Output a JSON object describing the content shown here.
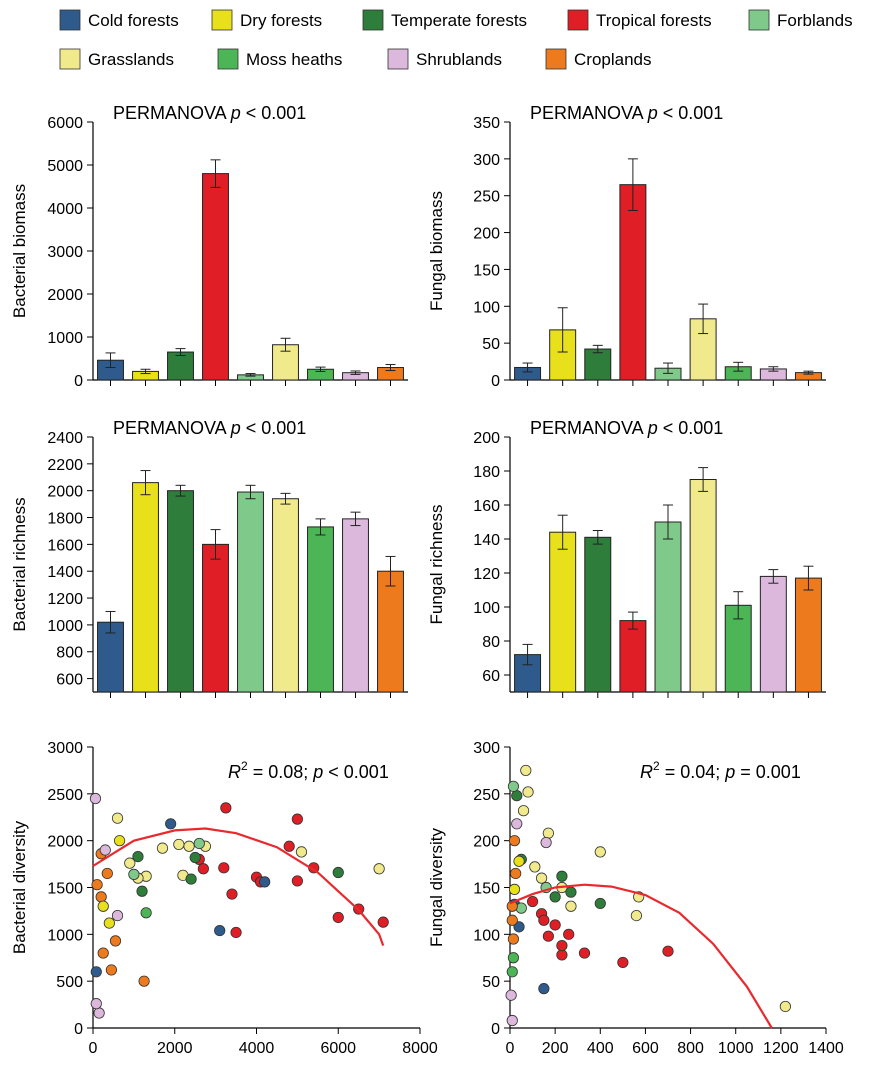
{
  "colors": {
    "Cold forests": "#2e5b8b",
    "Dry forests": "#e8e01a",
    "Temperate forests": "#2f7d3a",
    "Tropical forests": "#e01e25",
    "Forblands": "#7fc98a",
    "Grasslands": "#f0ea8c",
    "Moss heaths": "#4cb556",
    "Shrublands": "#dcb8dc",
    "Croplands": "#ee7a1e",
    "fit_line": "#e8292e"
  },
  "legend": {
    "items": [
      "Cold forests",
      "Dry forests",
      "Temperate forests",
      "Tropical forests",
      "Forblands",
      "Grasslands",
      "Moss heaths",
      "Shrublands",
      "Croplands"
    ]
  },
  "chart_data": [
    {
      "id": "bacterial-biomass",
      "type": "bar",
      "annotation": "PERMANOVA p < 0.001",
      "ylabel": "Bacterial biomass",
      "ylim": [
        0,
        6000
      ],
      "yticks": [
        0,
        1000,
        2000,
        3000,
        4000,
        5000,
        6000
      ],
      "categories": [
        "Cold forests",
        "Dry forests",
        "Temperate forests",
        "Tropical forests",
        "Forblands",
        "Grasslands",
        "Moss heaths",
        "Shrublands",
        "Croplands"
      ],
      "values": [
        460,
        200,
        650,
        4800,
        120,
        820,
        250,
        170,
        290
      ],
      "errors": [
        170,
        50,
        80,
        320,
        30,
        150,
        50,
        40,
        70
      ]
    },
    {
      "id": "fungal-biomass",
      "type": "bar",
      "annotation": "PERMANOVA p < 0.001",
      "ylabel": "Fungal biomass",
      "ylim": [
        0,
        350
      ],
      "yticks": [
        0,
        50,
        100,
        150,
        200,
        250,
        300,
        350
      ],
      "categories": [
        "Cold forests",
        "Dry forests",
        "Temperate forests",
        "Tropical forests",
        "Forblands",
        "Grasslands",
        "Moss heaths",
        "Shrublands",
        "Croplands"
      ],
      "values": [
        17,
        68,
        42,
        265,
        16,
        83,
        18,
        15,
        10
      ],
      "errors": [
        6,
        30,
        5,
        35,
        7,
        20,
        6,
        3,
        2
      ]
    },
    {
      "id": "bacterial-richness",
      "type": "bar",
      "annotation": "PERMANOVA p < 0.001",
      "ylabel": "Bacterial richness",
      "ylim": [
        500,
        2400
      ],
      "yticks": [
        600,
        800,
        1000,
        1200,
        1400,
        1600,
        1800,
        2000,
        2200,
        2400
      ],
      "categories": [
        "Cold forests",
        "Dry forests",
        "Temperate forests",
        "Tropical forests",
        "Forblands",
        "Grasslands",
        "Moss heaths",
        "Shrublands",
        "Croplands"
      ],
      "values": [
        1020,
        2060,
        2000,
        1600,
        1990,
        1940,
        1730,
        1790,
        1400
      ],
      "errors": [
        80,
        90,
        40,
        110,
        50,
        40,
        60,
        50,
        110
      ]
    },
    {
      "id": "fungal-richness",
      "type": "bar",
      "annotation": "PERMANOVA p < 0.001",
      "ylabel": "Fungal richness",
      "ylim": [
        50,
        200
      ],
      "yticks": [
        60,
        80,
        100,
        120,
        140,
        160,
        180,
        200
      ],
      "categories": [
        "Cold forests",
        "Dry forests",
        "Temperate forests",
        "Tropical forests",
        "Forblands",
        "Grasslands",
        "Moss heaths",
        "Shrublands",
        "Croplands"
      ],
      "values": [
        72,
        144,
        141,
        92,
        150,
        175,
        101,
        118,
        117
      ],
      "errors": [
        6,
        10,
        4,
        5,
        10,
        7,
        8,
        4,
        7
      ]
    },
    {
      "id": "bacterial-diversity-scatter",
      "type": "scatter",
      "annotation": "R2 = 0.08; p < 0.001",
      "xlabel": "Bacterial biomass",
      "ylabel": "Bacterial diversity",
      "xlim": [
        0,
        8000
      ],
      "ylim": [
        0,
        3000
      ],
      "xticks": [
        0,
        2000,
        4000,
        6000,
        8000
      ],
      "yticks": [
        0,
        500,
        1000,
        1500,
        2000,
        2500,
        3000
      ],
      "fit_line": [
        [
          0,
          1730
        ],
        [
          1000,
          2000
        ],
        [
          2000,
          2110
        ],
        [
          2750,
          2130
        ],
        [
          3500,
          2080
        ],
        [
          4500,
          1930
        ],
        [
          5500,
          1660
        ],
        [
          6500,
          1260
        ],
        [
          7000,
          1000
        ],
        [
          7100,
          880
        ]
      ],
      "points": [
        [
          3250,
          2350,
          "Tropical forests"
        ],
        [
          5000,
          2230,
          "Tropical forests"
        ],
        [
          4800,
          1940,
          "Tropical forests"
        ],
        [
          2600,
          1800,
          "Tropical forests"
        ],
        [
          2700,
          1700,
          "Tropical forests"
        ],
        [
          3200,
          1710,
          "Tropical forests"
        ],
        [
          4000,
          1610,
          "Tropical forests"
        ],
        [
          5400,
          1710,
          "Tropical forests"
        ],
        [
          3400,
          1430,
          "Tropical forests"
        ],
        [
          5000,
          1570,
          "Tropical forests"
        ],
        [
          6500,
          1270,
          "Tropical forests"
        ],
        [
          6000,
          1180,
          "Tropical forests"
        ],
        [
          7100,
          1130,
          "Tropical forests"
        ],
        [
          3500,
          1020,
          "Tropical forests"
        ],
        [
          4100,
          1560,
          "Tropical forests"
        ],
        [
          3100,
          1040,
          "Cold forests"
        ],
        [
          1900,
          2180,
          "Cold forests"
        ],
        [
          4200,
          1560,
          "Cold forests"
        ],
        [
          80,
          600,
          "Cold forests"
        ],
        [
          5100,
          1880,
          "Grasslands"
        ],
        [
          7000,
          1700,
          "Grasslands"
        ],
        [
          2100,
          1960,
          "Grasslands"
        ],
        [
          2350,
          1940,
          "Grasslands"
        ],
        [
          2750,
          1940,
          "Grasslands"
        ],
        [
          1700,
          1920,
          "Grasslands"
        ],
        [
          2200,
          1630,
          "Grasslands"
        ],
        [
          1300,
          1620,
          "Grasslands"
        ],
        [
          600,
          2240,
          "Grasslands"
        ],
        [
          900,
          1760,
          "Grasslands"
        ],
        [
          1100,
          1600,
          "Grasslands"
        ],
        [
          6000,
          1660,
          "Temperate forests"
        ],
        [
          2500,
          1820,
          "Temperate forests"
        ],
        [
          2400,
          1590,
          "Temperate forests"
        ],
        [
          1200,
          1460,
          "Temperate forests"
        ],
        [
          1100,
          1830,
          "Temperate forests"
        ],
        [
          2600,
          1970,
          "Forblands"
        ],
        [
          1000,
          1640,
          "Forblands"
        ],
        [
          1300,
          1230,
          "Moss heaths"
        ],
        [
          1250,
          500,
          "Croplands"
        ],
        [
          250,
          800,
          "Croplands"
        ],
        [
          450,
          620,
          "Croplands"
        ],
        [
          550,
          930,
          "Croplands"
        ],
        [
          200,
          1400,
          "Croplands"
        ],
        [
          200,
          1860,
          "Croplands"
        ],
        [
          100,
          1530,
          "Croplands"
        ],
        [
          350,
          1650,
          "Croplands"
        ],
        [
          150,
          160,
          "Shrublands"
        ],
        [
          80,
          260,
          "Shrublands"
        ],
        [
          600,
          1200,
          "Shrublands"
        ],
        [
          300,
          1900,
          "Shrublands"
        ],
        [
          60,
          2450,
          "Shrublands"
        ],
        [
          400,
          1120,
          "Dry forests"
        ],
        [
          250,
          1300,
          "Dry forests"
        ],
        [
          650,
          2000,
          "Dry forests"
        ]
      ]
    },
    {
      "id": "fungal-diversity-scatter",
      "type": "scatter",
      "annotation": "R2 = 0.04; p = 0.001",
      "xlabel": "Fungal biomass",
      "ylabel": "Fungal diversity",
      "xlim": [
        0,
        1400
      ],
      "ylim": [
        0,
        300
      ],
      "xticks": [
        0,
        200,
        400,
        600,
        800,
        1000,
        1200,
        1400
      ],
      "yticks": [
        0,
        50,
        100,
        150,
        200,
        250,
        300
      ],
      "fit_line": [
        [
          0,
          133
        ],
        [
          100,
          143
        ],
        [
          200,
          150
        ],
        [
          330,
          153
        ],
        [
          450,
          151
        ],
        [
          600,
          142
        ],
        [
          750,
          123
        ],
        [
          900,
          90
        ],
        [
          1050,
          44
        ],
        [
          1160,
          0
        ]
      ],
      "points": [
        [
          1220,
          23,
          "Grasslands"
        ],
        [
          570,
          140,
          "Grasslands"
        ],
        [
          560,
          120,
          "Grasslands"
        ],
        [
          400,
          188,
          "Grasslands"
        ],
        [
          170,
          208,
          "Grasslands"
        ],
        [
          70,
          275,
          "Grasslands"
        ],
        [
          80,
          252,
          "Grasslands"
        ],
        [
          270,
          130,
          "Grasslands"
        ],
        [
          140,
          160,
          "Grasslands"
        ],
        [
          230,
          150,
          "Grasslands"
        ],
        [
          60,
          232,
          "Grasslands"
        ],
        [
          110,
          172,
          "Grasslands"
        ],
        [
          700,
          82,
          "Tropical forests"
        ],
        [
          500,
          70,
          "Tropical forests"
        ],
        [
          330,
          80,
          "Tropical forests"
        ],
        [
          230,
          78,
          "Tropical forests"
        ],
        [
          230,
          88,
          "Tropical forests"
        ],
        [
          200,
          110,
          "Tropical forests"
        ],
        [
          170,
          98,
          "Tropical forests"
        ],
        [
          140,
          122,
          "Tropical forests"
        ],
        [
          260,
          100,
          "Tropical forests"
        ],
        [
          150,
          115,
          "Tropical forests"
        ],
        [
          100,
          135,
          "Tropical forests"
        ],
        [
          150,
          42,
          "Cold forests"
        ],
        [
          20,
          132,
          "Cold forests"
        ],
        [
          40,
          108,
          "Cold forests"
        ],
        [
          400,
          133,
          "Temperate forests"
        ],
        [
          230,
          162,
          "Temperate forests"
        ],
        [
          270,
          145,
          "Temperate forests"
        ],
        [
          200,
          140,
          "Temperate forests"
        ],
        [
          50,
          180,
          "Temperate forests"
        ],
        [
          30,
          248,
          "Temperate forests"
        ],
        [
          160,
          150,
          "Forblands"
        ],
        [
          50,
          128,
          "Forblands"
        ],
        [
          15,
          258,
          "Forblands"
        ],
        [
          20,
          200,
          "Croplands"
        ],
        [
          10,
          130,
          "Croplands"
        ],
        [
          15,
          95,
          "Croplands"
        ],
        [
          25,
          165,
          "Croplands"
        ],
        [
          10,
          115,
          "Croplands"
        ],
        [
          10,
          8,
          "Shrublands"
        ],
        [
          160,
          198,
          "Shrublands"
        ],
        [
          30,
          218,
          "Shrublands"
        ],
        [
          5,
          35,
          "Shrublands"
        ],
        [
          40,
          178,
          "Dry forests"
        ],
        [
          20,
          148,
          "Dry forests"
        ],
        [
          10,
          60,
          "Moss heaths"
        ],
        [
          15,
          75,
          "Moss heaths"
        ]
      ]
    }
  ]
}
